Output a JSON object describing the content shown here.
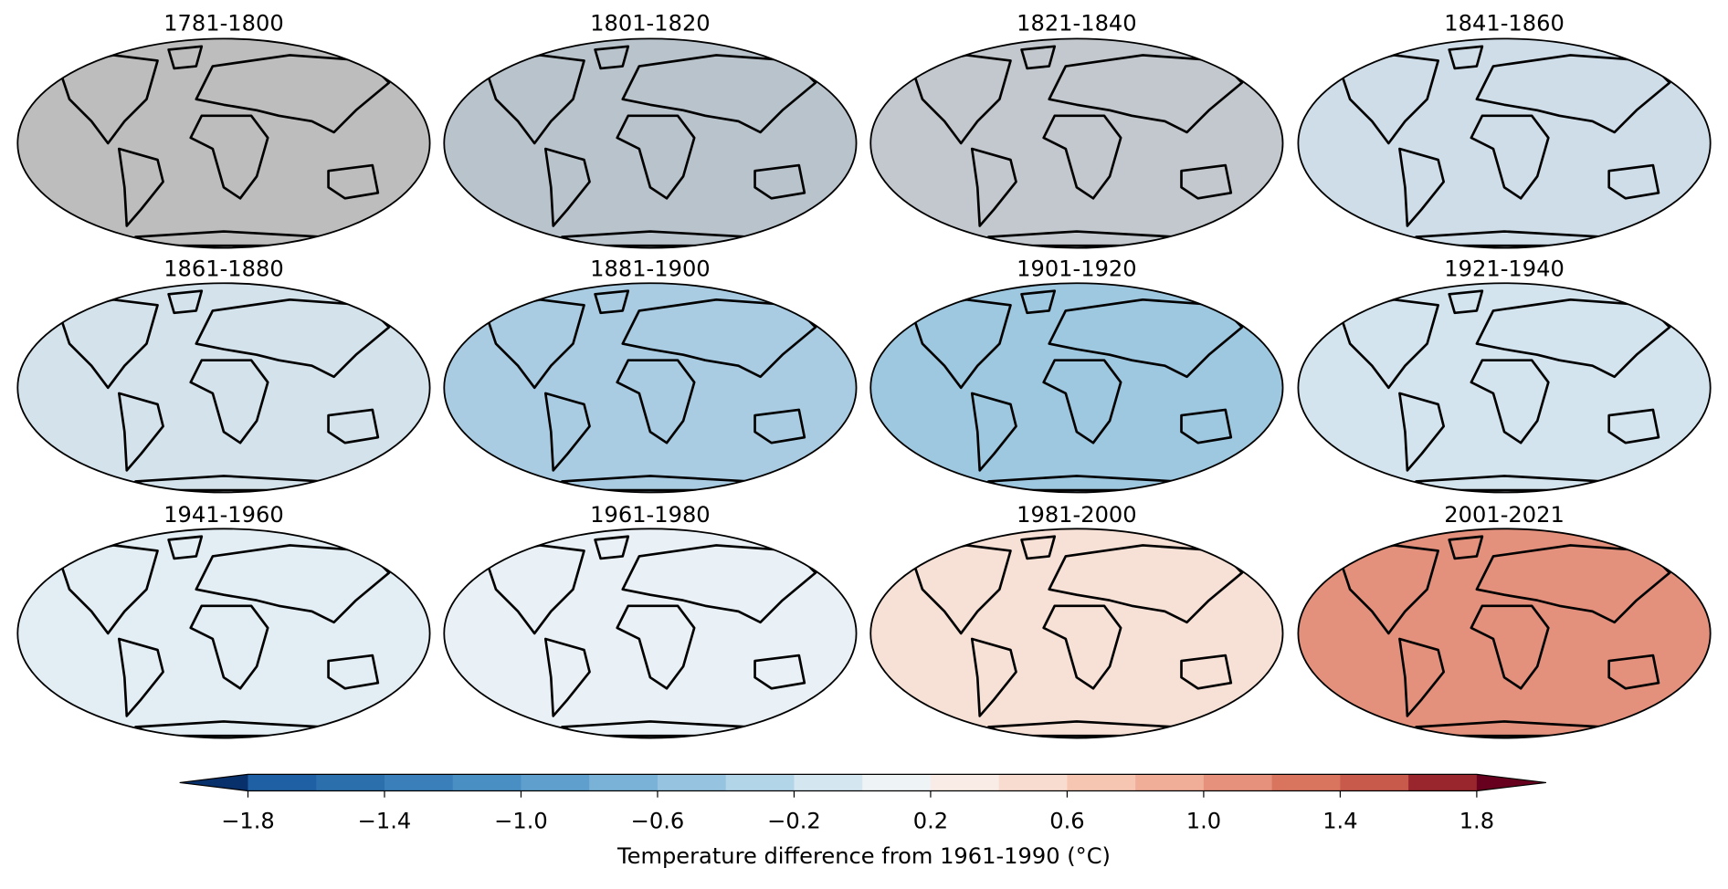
{
  "chart_data": {
    "type": "map-grid",
    "panels": [
      {
        "title": "1781-1800",
        "color": "#bdbdbd"
      },
      {
        "title": "1801-1820",
        "color": "#b9c3cc"
      },
      {
        "title": "1821-1840",
        "color": "#c2c8cd"
      },
      {
        "title": "1841-1860",
        "color": "#cfdde9"
      },
      {
        "title": "1861-1880",
        "color": "#d4e2ec"
      },
      {
        "title": "1881-1900",
        "color": "#a9cce3"
      },
      {
        "title": "1901-1920",
        "color": "#9ec7e0"
      },
      {
        "title": "1921-1940",
        "color": "#d3e4ef"
      },
      {
        "title": "1941-1960",
        "color": "#e3edf4"
      },
      {
        "title": "1961-1980",
        "color": "#e9f1f6"
      },
      {
        "title": "1981-2000",
        "color": "#f7e0d6"
      },
      {
        "title": "2001-2021",
        "color": "#e3907d"
      }
    ],
    "colorbar": {
      "label": "Temperature difference from 1961-1990 (°C)",
      "lim": [
        -1.8,
        1.8
      ],
      "ticks": [
        {
          "value": -1.8,
          "label": "−1.8"
        },
        {
          "value": -1.4,
          "label": "−1.4"
        },
        {
          "value": -1.0,
          "label": "−1.0"
        },
        {
          "value": -0.6,
          "label": "−0.6"
        },
        {
          "value": -0.2,
          "label": "−0.2"
        },
        0.2,
        0.6,
        {
          "value": 1.0,
          "label": "1.0"
        },
        1.4,
        1.8
      ],
      "extend_colors": [
        "#08306b",
        "#67001f"
      ],
      "colors": [
        "#1f5fa3",
        "#2c6fad",
        "#3a7fba",
        "#4a8fc4",
        "#5e9fcd",
        "#7ab2d7",
        "#96c4e0",
        "#b3d5e8",
        "#d4e6f0",
        "#eef3f6",
        "#f9ece6",
        "#f9dcd0",
        "#f6c6b3",
        "#f0ad97",
        "#e6917b",
        "#d9755f",
        "#c85a4b",
        "#99252d"
      ]
    }
  }
}
